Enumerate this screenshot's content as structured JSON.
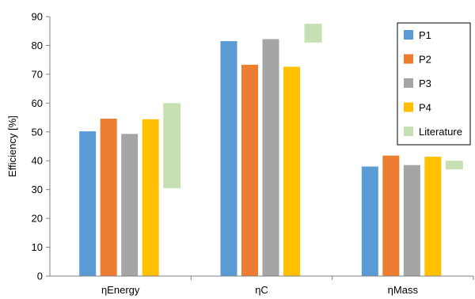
{
  "chart_data": {
    "type": "bar",
    "categories": [
      "ηEnergy",
      "ηC",
      "ηMass"
    ],
    "series": [
      {
        "name": "P1",
        "values": [
          50.2,
          81.5,
          38.0
        ],
        "color": "#5b9bd5"
      },
      {
        "name": "P2",
        "values": [
          54.6,
          73.3,
          41.8
        ],
        "color": "#ed7d31"
      },
      {
        "name": "P3",
        "values": [
          49.3,
          82.2,
          38.5
        ],
        "color": "#a5a5a5"
      },
      {
        "name": "P4",
        "values": [
          54.4,
          72.6,
          41.4
        ],
        "color": "#ffc000"
      }
    ],
    "ranges": {
      "name": "Literature",
      "color": "#c6e0b4",
      "values": [
        [
          30.5,
          60.0
        ],
        [
          81.0,
          87.5
        ],
        [
          37.0,
          40.0
        ]
      ]
    },
    "ylabel": "Efficiency [%]",
    "xlabel": "",
    "title": "",
    "ylim": [
      0,
      90
    ],
    "yticks": [
      "0",
      "10",
      "20",
      "30",
      "40",
      "50",
      "60",
      "70",
      "80",
      "90"
    ],
    "grid": false,
    "legend_position": "top-right",
    "legend_entries": [
      "P1",
      "P2",
      "P3",
      "P4",
      "Literature"
    ]
  }
}
